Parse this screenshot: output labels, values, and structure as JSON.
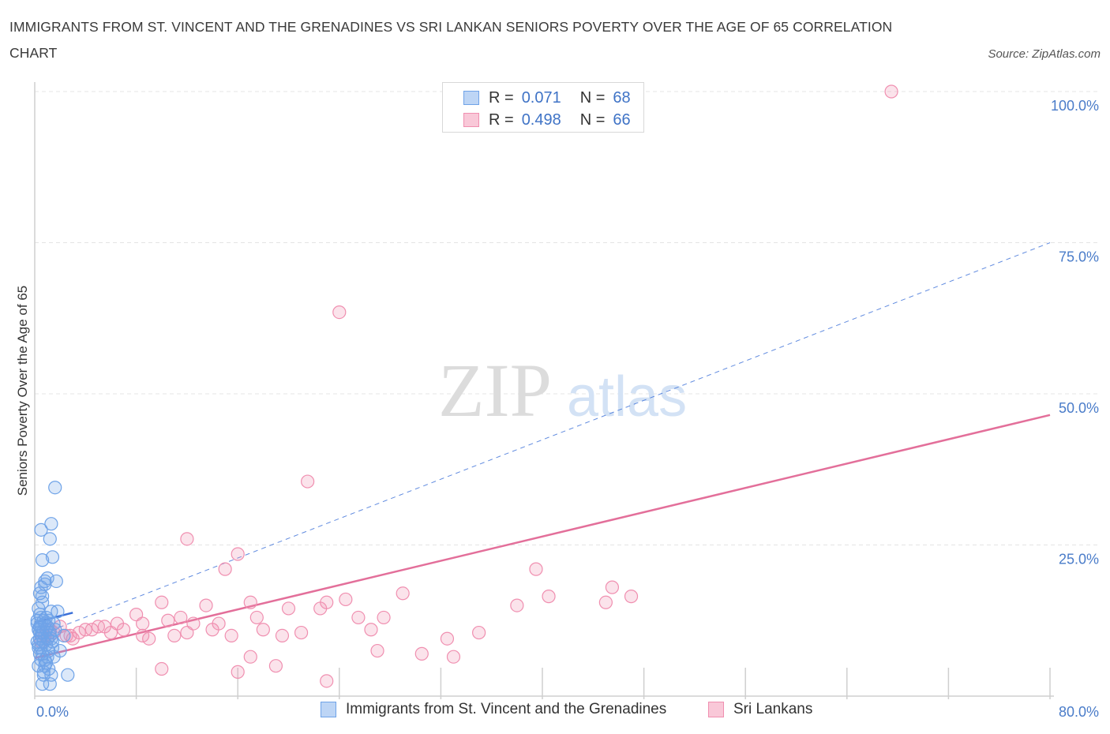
{
  "title": "IMMIGRANTS FROM ST. VINCENT AND THE GRENADINES VS SRI LANKAN SENIORS POVERTY OVER THE AGE OF 65 CORRELATION CHART",
  "source": "Source: ZipAtlas.com",
  "watermark": {
    "zip": "ZIP",
    "atlas": "atlas"
  },
  "legend": [
    {
      "r_label": "R =",
      "r_value": "0.071",
      "n_label": "N =",
      "n_value": "68"
    },
    {
      "r_label": "R =",
      "r_value": "0.498",
      "n_label": "N =",
      "n_value": "66"
    }
  ],
  "colors": {
    "blue": "#6fa3e8",
    "blue_line": "#3a6fd8",
    "pink": "#f08fb0",
    "pink_line": "#e36f9a",
    "tick": "#4a7cc9"
  },
  "chart_data": {
    "type": "scatter",
    "title": "IMMIGRANTS FROM ST. VINCENT AND THE GRENADINES VS SRI LANKAN SENIORS POVERTY OVER THE AGE OF 65 CORRELATION CHART",
    "xlabel": "",
    "ylabel": "Seniors Poverty Over the Age of 65",
    "xlim": [
      0,
      80
    ],
    "ylim": [
      0,
      100
    ],
    "x_tick_labels": [
      "0.0%",
      "80.0%"
    ],
    "y_tick_labels": [
      "25.0%",
      "50.0%",
      "75.0%",
      "100.0%"
    ],
    "y_ticks": [
      25,
      50,
      75,
      100
    ],
    "grid": true,
    "series": [
      {
        "name": "Immigrants from St. Vincent and the Grenadines",
        "R": 0.071,
        "N": 68,
        "trend": {
          "x": [
            0,
            3
          ],
          "y": [
            12.2,
            13.8
          ]
        },
        "trend_extended": {
          "x": [
            0,
            80
          ],
          "y": [
            9.8,
            75.0
          ]
        },
        "points": [
          [
            0.2,
            12.5
          ],
          [
            0.3,
            11.0
          ],
          [
            0.4,
            9.5
          ],
          [
            0.5,
            13.0
          ],
          [
            0.3,
            8.0
          ],
          [
            0.6,
            10.5
          ],
          [
            0.8,
            12.0
          ],
          [
            0.4,
            7.0
          ],
          [
            0.5,
            6.0
          ],
          [
            0.7,
            9.0
          ],
          [
            1.0,
            11.5
          ],
          [
            1.2,
            10.0
          ],
          [
            0.9,
            8.5
          ],
          [
            0.3,
            14.5
          ],
          [
            0.6,
            15.5
          ],
          [
            0.4,
            17.0
          ],
          [
            0.5,
            18.0
          ],
          [
            0.8,
            19.0
          ],
          [
            0.6,
            22.5
          ],
          [
            1.0,
            19.5
          ],
          [
            1.4,
            23.0
          ],
          [
            1.2,
            26.0
          ],
          [
            1.3,
            28.5
          ],
          [
            0.5,
            27.5
          ],
          [
            1.6,
            34.5
          ],
          [
            1.7,
            19.0
          ],
          [
            0.9,
            5.5
          ],
          [
            1.1,
            4.5
          ],
          [
            1.3,
            3.5
          ],
          [
            0.6,
            2.0
          ],
          [
            1.2,
            2.0
          ],
          [
            2.6,
            3.5
          ],
          [
            1.5,
            6.5
          ],
          [
            0.8,
            6.0
          ],
          [
            1.1,
            7.5
          ],
          [
            1.4,
            8.0
          ],
          [
            0.4,
            11.5
          ],
          [
            0.7,
            12.5
          ],
          [
            1.3,
            14.0
          ],
          [
            1.8,
            14.0
          ],
          [
            2.3,
            10.0
          ],
          [
            1.6,
            11.0
          ],
          [
            0.2,
            9.0
          ],
          [
            0.5,
            10.0
          ],
          [
            0.9,
            13.0
          ],
          [
            1.5,
            12.0
          ],
          [
            0.3,
            5.0
          ],
          [
            0.7,
            4.0
          ],
          [
            1.0,
            9.5
          ],
          [
            0.4,
            13.5
          ],
          [
            2.0,
            7.5
          ],
          [
            0.6,
            16.5
          ],
          [
            0.8,
            18.5
          ],
          [
            0.3,
            8.5
          ],
          [
            1.2,
            10.5
          ],
          [
            0.5,
            11.5
          ],
          [
            1.0,
            6.5
          ],
          [
            0.7,
            3.5
          ],
          [
            0.2,
            12.0
          ],
          [
            1.4,
            9.0
          ],
          [
            0.9,
            11.0
          ],
          [
            0.6,
            7.0
          ],
          [
            1.1,
            12.5
          ],
          [
            0.4,
            10.5
          ],
          [
            0.8,
            5.0
          ],
          [
            1.3,
            9.5
          ],
          [
            0.5,
            8.0
          ],
          [
            0.3,
            11.0
          ]
        ]
      },
      {
        "name": "Sri Lankans",
        "R": 0.498,
        "N": 66,
        "trend": {
          "x": [
            0,
            80
          ],
          "y": [
            6.3,
            46.5
          ]
        },
        "points": [
          [
            67.5,
            100.0
          ],
          [
            24.0,
            63.5
          ],
          [
            21.5,
            35.5
          ],
          [
            12.0,
            26.0
          ],
          [
            16.0,
            23.5
          ],
          [
            15.0,
            21.0
          ],
          [
            39.5,
            21.0
          ],
          [
            45.5,
            18.0
          ],
          [
            47.0,
            16.5
          ],
          [
            45.0,
            15.5
          ],
          [
            38.0,
            15.0
          ],
          [
            29.0,
            17.0
          ],
          [
            23.0,
            15.5
          ],
          [
            22.5,
            14.5
          ],
          [
            17.0,
            15.5
          ],
          [
            13.5,
            15.0
          ],
          [
            10.0,
            15.5
          ],
          [
            20.0,
            14.5
          ],
          [
            25.5,
            13.0
          ],
          [
            27.5,
            13.0
          ],
          [
            11.5,
            13.0
          ],
          [
            8.0,
            13.5
          ],
          [
            10.5,
            12.5
          ],
          [
            5.5,
            11.5
          ],
          [
            6.5,
            12.0
          ],
          [
            8.5,
            12.0
          ],
          [
            12.5,
            12.0
          ],
          [
            17.5,
            13.0
          ],
          [
            18.0,
            11.0
          ],
          [
            21.0,
            10.5
          ],
          [
            19.5,
            10.0
          ],
          [
            26.5,
            11.0
          ],
          [
            35.0,
            10.5
          ],
          [
            14.0,
            11.0
          ],
          [
            11.0,
            10.0
          ],
          [
            12.0,
            10.5
          ],
          [
            8.5,
            10.0
          ],
          [
            9.0,
            9.5
          ],
          [
            4.5,
            11.0
          ],
          [
            5.0,
            11.5
          ],
          [
            4.0,
            11.0
          ],
          [
            3.5,
            10.5
          ],
          [
            2.5,
            10.0
          ],
          [
            1.5,
            10.5
          ],
          [
            1.0,
            9.5
          ],
          [
            0.8,
            10.0
          ],
          [
            1.2,
            11.0
          ],
          [
            2.8,
            10.0
          ],
          [
            3.0,
            9.5
          ],
          [
            6.0,
            10.5
          ],
          [
            7.0,
            11.0
          ],
          [
            32.5,
            9.5
          ],
          [
            27.0,
            7.5
          ],
          [
            30.5,
            7.0
          ],
          [
            33.0,
            6.5
          ],
          [
            17.0,
            6.5
          ],
          [
            19.0,
            5.0
          ],
          [
            16.0,
            4.0
          ],
          [
            10.0,
            4.5
          ],
          [
            23.0,
            2.5
          ],
          [
            14.5,
            12.0
          ],
          [
            24.5,
            16.0
          ],
          [
            40.5,
            16.5
          ],
          [
            15.5,
            10.0
          ],
          [
            2.0,
            11.5
          ],
          [
            0.5,
            9.0
          ]
        ]
      }
    ]
  },
  "bottom_legend": [
    "Immigrants from St. Vincent and the Grenadines",
    "Sri Lankans"
  ]
}
